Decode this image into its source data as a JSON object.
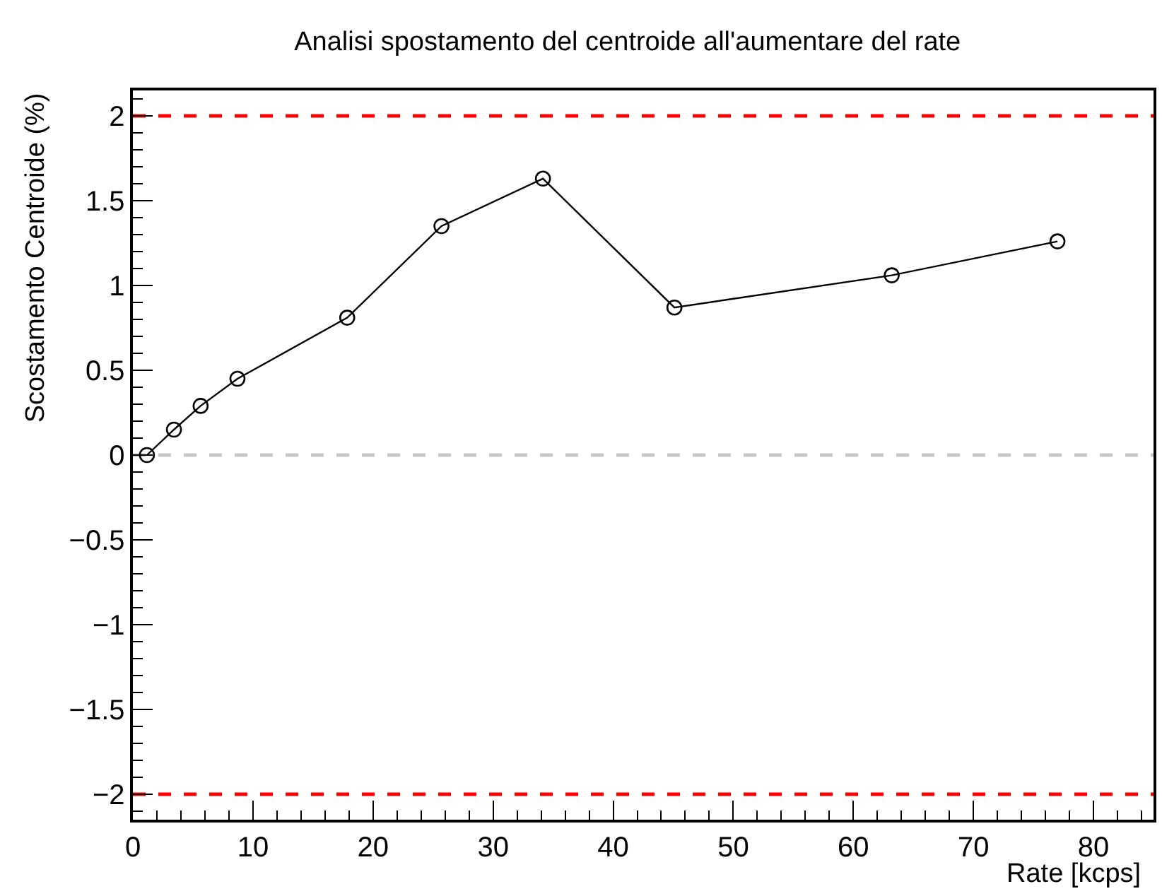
{
  "chart_data": {
    "type": "line",
    "title": "Analisi spostamento del centroide all'aumentare del rate",
    "xlabel": "Rate [kcps]",
    "ylabel": "Scostamento Centroide (%)",
    "x": [
      1.17,
      3.42,
      5.64,
      8.71,
      17.85,
      25.7,
      34.15,
      45.1,
      63.2,
      77.0
    ],
    "series": [
      {
        "color": "#000000",
        "values": [
          0,
          0.15,
          0.29,
          0.45,
          0.81,
          1.35,
          1.63,
          0.87,
          1.06,
          1.26
        ]
      }
    ],
    "xlim": [
      0,
      85
    ],
    "xticks": [
      0,
      10,
      20,
      30,
      40,
      50,
      60,
      70,
      80
    ],
    "ylim": [
      -2.15,
      2.15
    ],
    "yticks": [
      -2,
      -1.5,
      -1,
      -0.5,
      0,
      0.5,
      1,
      1.5,
      2
    ],
    "ref_lines": [
      {
        "axis": "y",
        "value": 2,
        "color": "#ff0000",
        "line_style": "dashed"
      },
      {
        "axis": "y",
        "value": -2,
        "color": "#ff0000",
        "line_style": "dashed"
      },
      {
        "axis": "y",
        "value": 0,
        "color": "#c8c8c8",
        "line_style": "dashed"
      }
    ],
    "marker": "circle",
    "line_style": "solid"
  }
}
